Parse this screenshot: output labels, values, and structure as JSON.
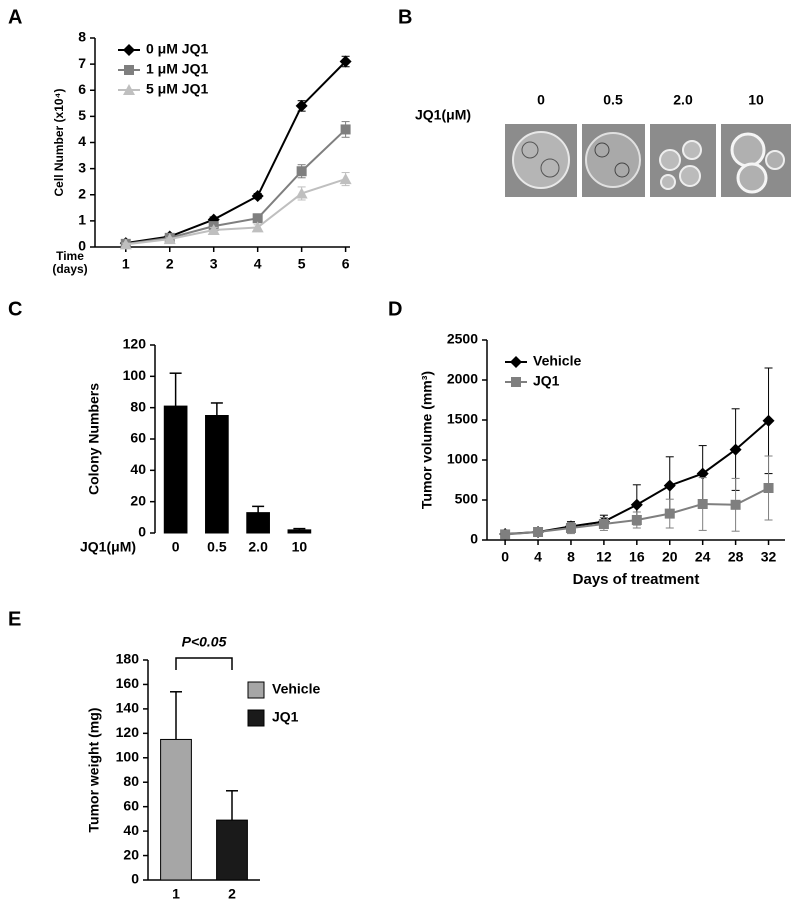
{
  "chart_data": [
    {
      "type": "line",
      "panel": "A",
      "ylabel": "Cell Number (x10⁴)",
      "xlabel": [
        "Time",
        "(days)"
      ],
      "x": [
        1,
        2,
        3,
        4,
        5,
        6
      ],
      "xlim": [
        0.3,
        6.1
      ],
      "xticks": [
        1,
        2,
        3,
        4,
        5,
        6
      ],
      "ylim": [
        0,
        8
      ],
      "yticks": [
        0,
        1,
        2,
        3,
        4,
        5,
        6,
        7,
        8
      ],
      "legend": "upper left",
      "series": [
        {
          "name": "0 μM JQ1",
          "color": "#000000",
          "marker": "diamond",
          "values": [
            0.15,
            0.4,
            1.05,
            1.95,
            5.4,
            7.1
          ],
          "errors": [
            0.05,
            0.05,
            0.1,
            0.1,
            0.2,
            0.2
          ]
        },
        {
          "name": "1 μM JQ1",
          "color": "#7f7f7f",
          "marker": "square",
          "values": [
            0.12,
            0.35,
            0.8,
            1.1,
            2.9,
            4.5
          ],
          "errors": [
            0.05,
            0.05,
            0.1,
            0.15,
            0.25,
            0.3
          ]
        },
        {
          "name": "5 μM JQ1",
          "color": "#bfbfbf",
          "marker": "triangle",
          "values": [
            0.1,
            0.3,
            0.65,
            0.75,
            2.05,
            2.6
          ],
          "errors": [
            0.05,
            0.05,
            0.1,
            0.1,
            0.25,
            0.25
          ]
        }
      ]
    },
    {
      "type": "bar",
      "panel": "C",
      "ylabel": "Colony Numbers",
      "xlabel": "JQ1(μM)",
      "categories": [
        "0",
        "0.5",
        "2.0",
        "10"
      ],
      "values": [
        81,
        75,
        13,
        2
      ],
      "errors": [
        21,
        8,
        4,
        0.8
      ],
      "colors": [
        "#000000",
        "#000000",
        "#000000",
        "#000000"
      ],
      "ylim": [
        0,
        120
      ],
      "yticks": [
        0,
        20,
        40,
        60,
        80,
        100,
        120
      ]
    },
    {
      "type": "line",
      "panel": "D",
      "ylabel": "Tumor volume (mm³)",
      "xlabel": "Days of treatment",
      "x": [
        0,
        4,
        8,
        12,
        16,
        20,
        24,
        28,
        32
      ],
      "xlim": [
        -2.2,
        34
      ],
      "xticks": [
        0,
        4,
        8,
        12,
        16,
        20,
        24,
        28,
        32
      ],
      "ylim": [
        0,
        2500
      ],
      "yticks": [
        0,
        500,
        1000,
        1500,
        2000,
        2500
      ],
      "legend": "upper left",
      "series": [
        {
          "name": "Vehicle",
          "color": "#000000",
          "marker": "diamond",
          "values": [
            75,
            100,
            170,
            230,
            440,
            680,
            830,
            1130,
            1490
          ],
          "errors": [
            50,
            50,
            60,
            80,
            250,
            360,
            350,
            510,
            660
          ]
        },
        {
          "name": "JQ1",
          "color": "#7f7f7f",
          "marker": "square",
          "values": [
            70,
            100,
            150,
            200,
            250,
            330,
            450,
            440,
            650
          ],
          "errors": [
            40,
            50,
            70,
            80,
            100,
            180,
            330,
            330,
            400
          ]
        }
      ]
    },
    {
      "type": "bar",
      "panel": "E",
      "ylabel": "Tumor weight (mg)",
      "annotation": "P<0.05",
      "categories": [
        "1",
        "2"
      ],
      "values": [
        115,
        49
      ],
      "errors": [
        39,
        24
      ],
      "colors": [
        "#a6a6a6",
        "#1a1a1a"
      ],
      "legend_names": [
        "Vehicle",
        "JQ1"
      ],
      "ylim": [
        0,
        180
      ],
      "yticks": [
        0,
        20,
        40,
        60,
        80,
        100,
        120,
        140,
        160,
        180
      ]
    }
  ],
  "image_panel": {
    "panel": "B",
    "label": "JQ1(μM)",
    "conditions": [
      "0",
      "0.5",
      "2.0",
      "10"
    ]
  }
}
